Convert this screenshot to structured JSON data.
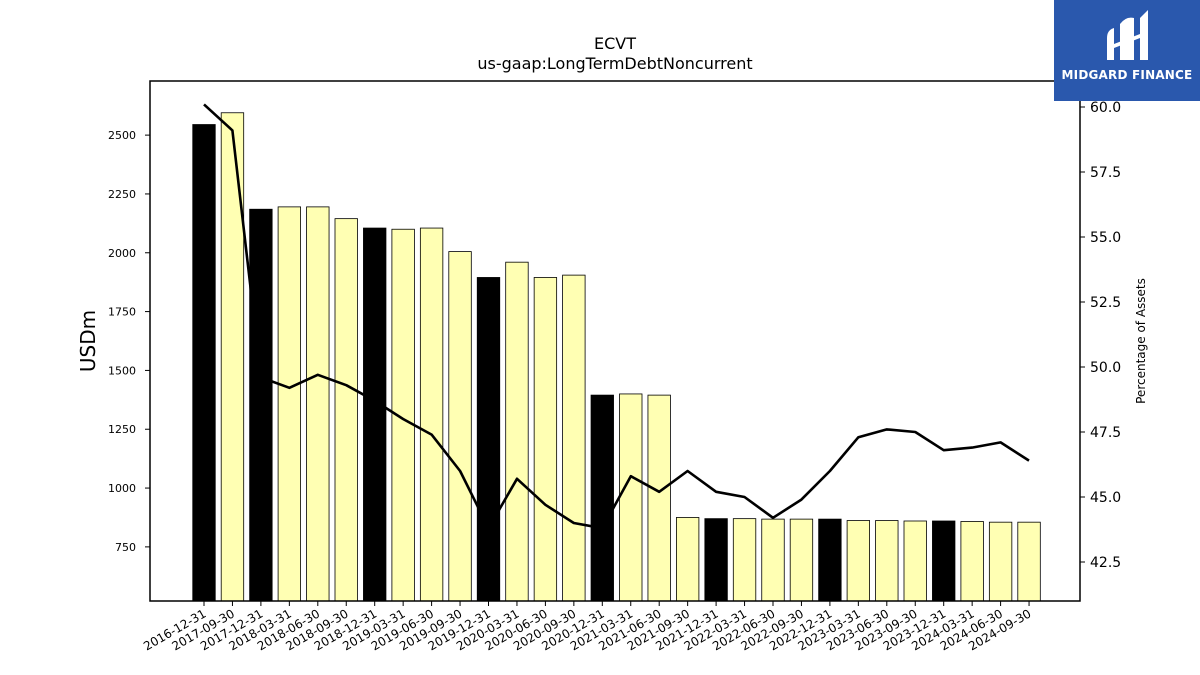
{
  "chart_data": {
    "type": "bar",
    "title": "ECVT",
    "subtitle": "us-gaap:LongTermDebtNoncurrent",
    "ylabel": "USDm",
    "y2label": "Percentage of Assets",
    "ylim": [
      520,
      2730
    ],
    "y2lim": [
      41.0,
      61.0
    ],
    "yticks": [
      750,
      1000,
      1250,
      1500,
      1750,
      2000,
      2250,
      2500
    ],
    "y2ticks": [
      "42.5",
      "45.0",
      "47.5",
      "50.0",
      "52.5",
      "55.0",
      "57.5",
      "60.0"
    ],
    "categories": [
      "2016-12-31",
      "2017-09-30",
      "2017-12-31",
      "2018-03-31",
      "2018-06-30",
      "2018-09-30",
      "2018-12-31",
      "2019-03-31",
      "2019-06-30",
      "2019-09-30",
      "2019-12-31",
      "2020-03-31",
      "2020-06-30",
      "2020-09-30",
      "2020-12-31",
      "2021-03-31",
      "2021-06-30",
      "2021-09-30",
      "2021-12-31",
      "2022-03-31",
      "2022-06-30",
      "2022-09-30",
      "2022-12-31",
      "2023-03-31",
      "2023-06-30",
      "2023-09-30",
      "2023-12-31",
      "2024-03-31",
      "2024-06-30",
      "2024-09-30"
    ],
    "series": [
      {
        "type": "bar",
        "values": [
          2545,
          2595,
          2185,
          2195,
          2195,
          2145,
          2105,
          2100,
          2105,
          2005,
          1895,
          1960,
          1895,
          1905,
          1395,
          1400,
          1395,
          875,
          870,
          870,
          868,
          868,
          868,
          862,
          862,
          860,
          860,
          858,
          855,
          855
        ],
        "fiscal_year_end": [
          true,
          false,
          true,
          false,
          false,
          false,
          true,
          false,
          false,
          false,
          true,
          false,
          false,
          false,
          true,
          false,
          false,
          false,
          true,
          false,
          false,
          false,
          true,
          false,
          false,
          false,
          true,
          false,
          false,
          false
        ]
      },
      {
        "type": "line",
        "axis": "right",
        "values": [
          60.1,
          59.1,
          49.6,
          49.2,
          49.7,
          49.3,
          48.7,
          48.0,
          47.4,
          46.0,
          43.8,
          45.7,
          44.7,
          44.0,
          43.8,
          45.8,
          45.2,
          46.0,
          45.2,
          45.0,
          44.2,
          44.9,
          46.0,
          47.3,
          47.6,
          47.5,
          46.8,
          46.9,
          47.1,
          46.4
        ]
      }
    ],
    "colors": {
      "bar_year_end": "#000000",
      "bar_other": "#ffffb3",
      "bar_edge": "#000000",
      "line": "#000000"
    }
  },
  "logo": {
    "text": "MIDGARD FINANCE",
    "background": "#2a58ad"
  }
}
